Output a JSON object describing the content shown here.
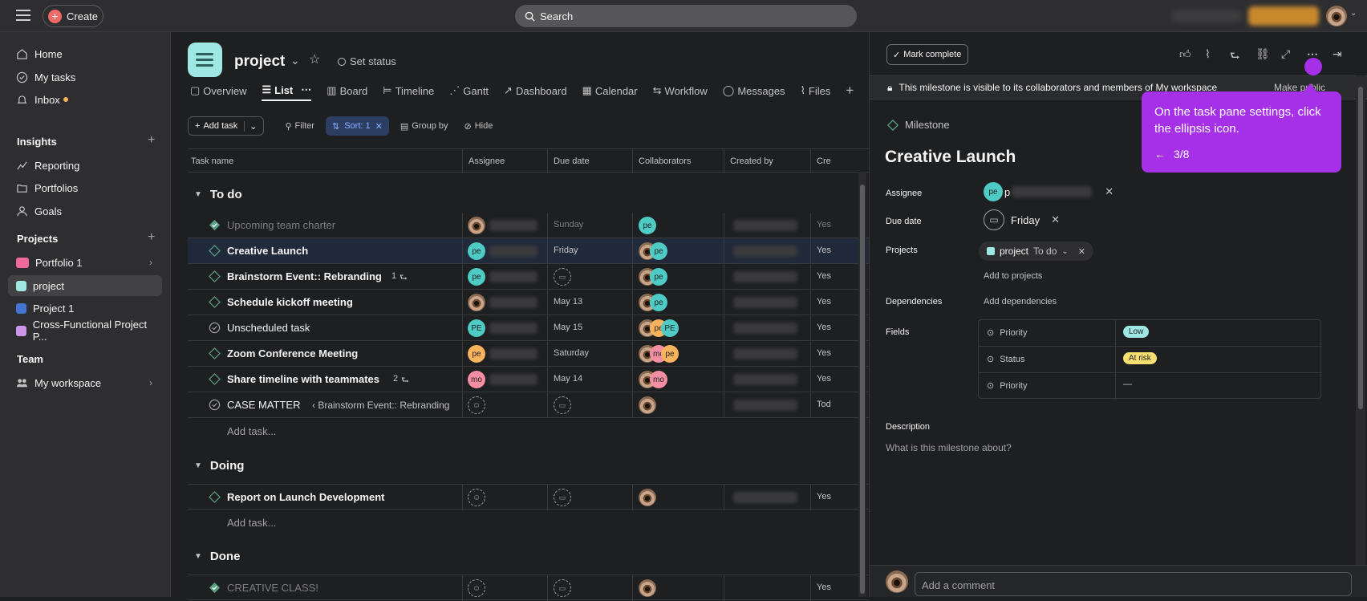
{
  "topbar": {
    "create_label": "Create",
    "search_placeholder": "Search"
  },
  "sidebar": {
    "home": "Home",
    "my_tasks": "My tasks",
    "inbox": "Inbox",
    "insights_header": "Insights",
    "reporting": "Reporting",
    "portfolios": "Portfolios",
    "goals": "Goals",
    "projects_header": "Projects",
    "projects": [
      {
        "label": "Portfolio 1",
        "color": "#f06a99"
      },
      {
        "label": "project",
        "color": "#9ee7e3"
      },
      {
        "label": "Project 1",
        "color": "#4573d2"
      },
      {
        "label": "Cross-Functional Project P...",
        "color": "#cd95ea"
      }
    ],
    "team_header": "Team",
    "my_workspace": "My workspace"
  },
  "project": {
    "title": "project",
    "set_status": "Set status",
    "tabs": [
      "Overview",
      "List",
      "Board",
      "Timeline",
      "Gantt",
      "Dashboard",
      "Calendar",
      "Workflow",
      "Messages",
      "Files"
    ]
  },
  "toolbar": {
    "add_task": "Add task",
    "filter": "Filter",
    "sort": "Sort: 1",
    "group_by": "Group by",
    "hide": "Hide"
  },
  "columns": {
    "task_name": "Task name",
    "assignee": "Assignee",
    "due_date": "Due date",
    "collaborators": "Collaborators",
    "created_by": "Created by",
    "created_trunc": "Cre"
  },
  "sections": {
    "todo": "To do",
    "doing": "Doing",
    "done": "Done",
    "add_task": "Add task..."
  },
  "rows": [
    {
      "name": "Upcoming team charter",
      "due": "Sunday",
      "extra": "Yes"
    },
    {
      "name": "Creative Launch",
      "assignee": "pe",
      "due": "Friday",
      "extra": "Yes"
    },
    {
      "name": "Brainstorm Event:: Rebranding",
      "assignee": "pe",
      "subtasks": "1",
      "due": "",
      "extra": "Yes"
    },
    {
      "name": "Schedule kickoff meeting",
      "due": "May 13",
      "extra": "Yes"
    },
    {
      "name": "Unscheduled task",
      "assignee": "PE",
      "due": "May 15",
      "extra": "Yes"
    },
    {
      "name": "Zoom Conference Meeting",
      "assignee": "pe",
      "due": "Saturday",
      "extra": "Yes"
    },
    {
      "name": "Share timeline with teammates",
      "assignee": "mo",
      "subtasks": "2",
      "due": "May 14",
      "extra": "Yes"
    },
    {
      "name": "CASE MATTER",
      "parent": "‹ Brainstorm Event:: Rebranding",
      "due": "",
      "extra": "Tod"
    },
    {
      "name": "Report on Launch Development",
      "due": "",
      "extra": "Yes"
    },
    {
      "name": "CREATIVE CLASS!",
      "due": "",
      "extra": "Yes"
    }
  ],
  "collab_initials": {
    "pe": "pe",
    "PE": "PE",
    "mo": "mo"
  },
  "pane": {
    "mark_complete": "Mark complete",
    "visibility": "This milestone is visible to its collaborators and members of My workspace",
    "make_public": "Make public",
    "type_label": "Milestone",
    "title": "Creative Launch",
    "assignee_label": "Assignee",
    "assignee_initials": "pe",
    "assignee_first": "p",
    "due_label": "Due date",
    "due_value": "Friday",
    "projects_label": "Projects",
    "project_name": "project",
    "project_section": "To do",
    "add_to_projects": "Add to projects",
    "dependencies_label": "Dependencies",
    "add_dependencies": "Add dependencies",
    "fields_label": "Fields",
    "fields": [
      {
        "key": "Priority",
        "value": "Low",
        "color": "#9ee7e3"
      },
      {
        "key": "Status",
        "value": "At risk",
        "color": "#f8df72"
      },
      {
        "key": "Priority",
        "value": "—"
      }
    ],
    "description_label": "Description",
    "description_placeholder": "What is this milestone about?",
    "comment_placeholder": "Add a comment"
  },
  "tooltip": {
    "text": "On the task pane settings, click the ellipsis icon.",
    "step": "3/8"
  }
}
